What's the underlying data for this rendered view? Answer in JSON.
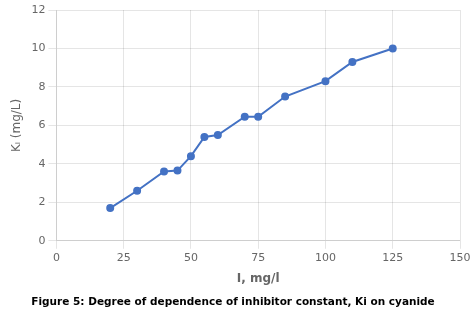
{
  "chart_data": {
    "type": "line",
    "title": "Figure 5: Degree of dependence of inhibitor constant, Ki on cyanide",
    "xlabel": "I, mg/l",
    "ylabel": "Kᵢ (mg/L)",
    "x": [
      20,
      30,
      40,
      45,
      50,
      55,
      60,
      70,
      75,
      85,
      100,
      110,
      125
    ],
    "values": [
      1.7,
      2.6,
      3.6,
      3.65,
      4.4,
      5.4,
      5.5,
      6.45,
      6.45,
      7.5,
      8.3,
      9.3,
      10.0
    ],
    "color": "#4472c4",
    "marker": "circle",
    "xlim": [
      0,
      150
    ],
    "ylim": [
      0,
      12
    ],
    "xticks": [
      0,
      25,
      50,
      75,
      100,
      125,
      150
    ],
    "yticks": [
      0,
      2,
      4,
      6,
      8,
      10,
      12
    ],
    "grid": true
  }
}
